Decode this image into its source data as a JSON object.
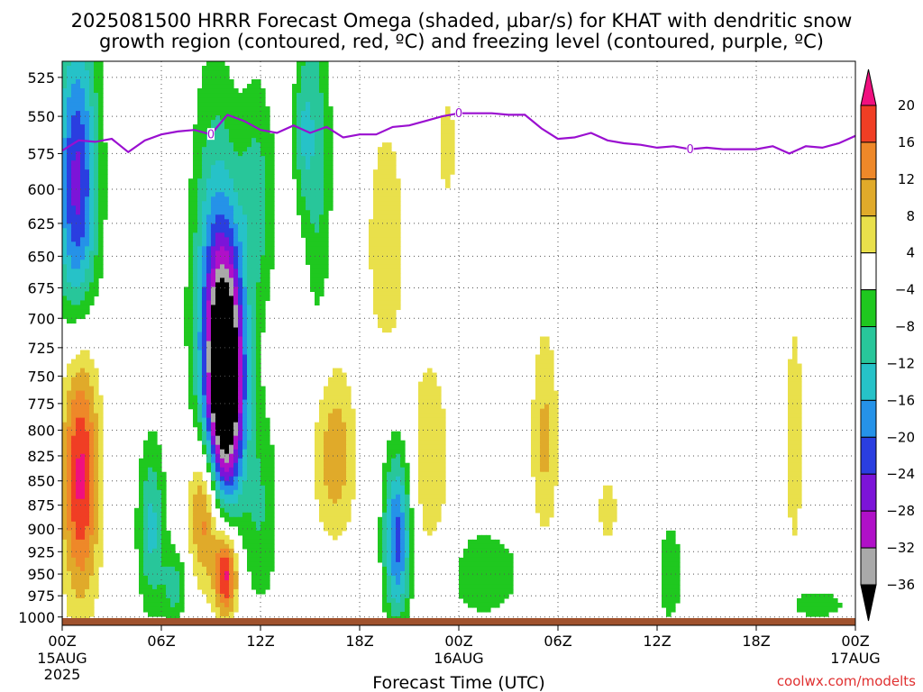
{
  "title_line1": "2025081500 HRRR Forecast Omega (shaded, µbar/s) for KHAT with dendritic snow",
  "title_line2": "growth region (contoured, red, ºC) and freezing level (contoured, purple, ºC)",
  "xlabel": "Forecast Time (UTC)",
  "credit": "coolwx.com/modelts",
  "colors": {
    "freezing_line": "#9a0fd0",
    "ground": "#a0522d",
    "grid": "#555555",
    "credit": "#e03030"
  },
  "chart_data": {
    "type": "heatmap",
    "x_ticks": [
      {
        "h": 0,
        "label": "00Z",
        "sub1": "15AUG",
        "sub2": "2025"
      },
      {
        "h": 6,
        "label": "06Z",
        "sub1": "",
        "sub2": ""
      },
      {
        "h": 12,
        "label": "12Z",
        "sub1": "",
        "sub2": ""
      },
      {
        "h": 18,
        "label": "18Z",
        "sub1": "",
        "sub2": ""
      },
      {
        "h": 24,
        "label": "00Z",
        "sub1": "16AUG",
        "sub2": ""
      },
      {
        "h": 30,
        "label": "06Z",
        "sub1": "",
        "sub2": ""
      },
      {
        "h": 36,
        "label": "12Z",
        "sub1": "",
        "sub2": ""
      },
      {
        "h": 42,
        "label": "18Z",
        "sub1": "",
        "sub2": ""
      },
      {
        "h": 48,
        "label": "00Z",
        "sub1": "17AUG",
        "sub2": ""
      }
    ],
    "xlim_hours": [
      0,
      48
    ],
    "y_ticks": [
      525,
      550,
      575,
      600,
      625,
      650,
      675,
      700,
      725,
      750,
      775,
      800,
      825,
      850,
      875,
      900,
      925,
      950,
      975,
      1000
    ],
    "ylim_mb": [
      515,
      1010
    ],
    "y_scale": "log",
    "grid": true,
    "colorbar": {
      "labels": [
        "20",
        "16",
        "12",
        "8",
        "4",
        "−4",
        "−8",
        "−12",
        "−16",
        "−20",
        "−24",
        "−28",
        "−32",
        "−36"
      ],
      "bins": [
        {
          "min": 20,
          "max": 24,
          "color": "#f0107f"
        },
        {
          "min": 16,
          "max": 20,
          "color": "#f03e24"
        },
        {
          "min": 12,
          "max": 16,
          "color": "#ee8829"
        },
        {
          "min": 8,
          "max": 12,
          "color": "#e0aa2a"
        },
        {
          "min": 4,
          "max": 8,
          "color": "#e9e04b"
        },
        {
          "min": -4,
          "max": 4,
          "color": "#ffffff"
        },
        {
          "min": -8,
          "max": -4,
          "color": "#1fc81f"
        },
        {
          "min": -12,
          "max": -8,
          "color": "#28c69a"
        },
        {
          "min": -16,
          "max": -12,
          "color": "#26c2c8"
        },
        {
          "min": -20,
          "max": -16,
          "color": "#2592e8"
        },
        {
          "min": -24,
          "max": -20,
          "color": "#2a3ee0"
        },
        {
          "min": -28,
          "max": -24,
          "color": "#7c14d8"
        },
        {
          "min": -32,
          "max": -28,
          "color": "#b010c8"
        },
        {
          "min": -36,
          "max": -32,
          "color": "#a9a9a9"
        },
        {
          "min": -40,
          "max": -36,
          "color": "#000000"
        }
      ]
    },
    "omega_features": [
      {
        "h": 0.9,
        "p": 600,
        "sh": 0.9,
        "sp": 75,
        "a": -26
      },
      {
        "h": 1.1,
        "p": 845,
        "sh": 0.8,
        "sp": 95,
        "a": 21
      },
      {
        "h": 9.9,
        "p": 755,
        "sh": 0.8,
        "sp": 75,
        "a": -46
      },
      {
        "h": 9.2,
        "p": 690,
        "sh": 1.0,
        "sp": 110,
        "a": -16
      },
      {
        "h": 8.6,
        "p": 880,
        "sh": 0.65,
        "sp": 55,
        "a": 17
      },
      {
        "h": 9.9,
        "p": 950,
        "sh": 0.5,
        "sp": 35,
        "a": 22
      },
      {
        "h": 5.4,
        "p": 900,
        "sh": 0.6,
        "sp": 65,
        "a": -13
      },
      {
        "h": 6.8,
        "p": 965,
        "sh": 0.5,
        "sp": 30,
        "a": -10
      },
      {
        "h": 11.8,
        "p": 610,
        "sh": 0.8,
        "sp": 60,
        "a": -10
      },
      {
        "h": 12.0,
        "p": 880,
        "sh": 0.8,
        "sp": 80,
        "a": -8
      },
      {
        "h": 14.6,
        "p": 560,
        "sh": 0.45,
        "sp": 40,
        "a": -10
      },
      {
        "h": 15.5,
        "p": 580,
        "sh": 0.6,
        "sp": 90,
        "a": -9
      },
      {
        "h": 16.5,
        "p": 825,
        "sh": 0.9,
        "sp": 60,
        "a": 11
      },
      {
        "h": 19.6,
        "p": 640,
        "sh": 0.9,
        "sp": 70,
        "a": 7
      },
      {
        "h": 20.3,
        "p": 910,
        "sh": 0.6,
        "sp": 65,
        "a": -22
      },
      {
        "h": 22.2,
        "p": 835,
        "sh": 1.0,
        "sp": 85,
        "a": 7
      },
      {
        "h": 25.5,
        "p": 950,
        "sh": 1.8,
        "sp": 40,
        "a": -7
      },
      {
        "h": 29.2,
        "p": 810,
        "sh": 0.6,
        "sp": 75,
        "a": 9
      },
      {
        "h": 36.8,
        "p": 950,
        "sh": 0.6,
        "sp": 45,
        "a": -7
      },
      {
        "h": 45.5,
        "p": 985,
        "sh": 1.8,
        "sp": 15,
        "a": -6
      },
      {
        "h": 44.3,
        "p": 810,
        "sh": 0.4,
        "sp": 90,
        "a": 7
      },
      {
        "h": 33.0,
        "p": 880,
        "sh": 0.5,
        "sp": 30,
        "a": 6
      },
      {
        "h": 23.3,
        "p": 570,
        "sh": 0.6,
        "sp": 40,
        "a": 5
      }
    ],
    "freezing_level": {
      "value_label": "0",
      "label_hours": [
        9,
        24,
        38
      ],
      "x_hours": [
        0,
        1,
        2,
        3,
        4,
        5,
        6,
        7,
        8,
        9,
        10,
        11,
        12,
        13,
        14,
        15,
        16,
        17,
        18,
        19,
        20,
        21,
        22,
        23,
        24,
        25,
        26,
        27,
        28,
        29,
        30,
        31,
        32,
        33,
        34,
        35,
        36,
        37,
        38,
        39,
        40,
        41,
        42,
        43,
        44,
        45,
        46,
        47,
        48
      ],
      "p_mb": [
        573,
        566,
        567,
        565,
        574,
        566,
        562,
        560,
        559,
        562,
        549,
        553,
        559,
        561,
        556,
        561,
        557,
        564,
        562,
        562,
        557,
        556,
        553,
        550,
        548,
        548,
        548,
        549,
        549,
        558,
        565,
        564,
        561,
        566,
        568,
        569,
        571,
        570,
        572,
        571,
        572,
        572,
        572,
        570,
        575,
        570,
        571,
        568,
        563
      ]
    }
  }
}
